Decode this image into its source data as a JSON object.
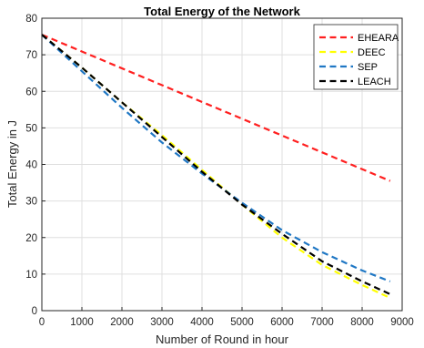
{
  "chart_data": {
    "type": "line",
    "title": "Total Energy of the Network",
    "xlabel": "Number of Round in hour",
    "ylabel": "Total Energy in J",
    "xlim": [
      0,
      9000
    ],
    "ylim": [
      0,
      80
    ],
    "xticks": [
      0,
      1000,
      2000,
      3000,
      4000,
      5000,
      6000,
      7000,
      8000,
      9000
    ],
    "yticks": [
      0,
      10,
      20,
      30,
      40,
      50,
      60,
      70,
      80
    ],
    "grid": true,
    "legend_position": "top-right",
    "series": [
      {
        "name": "EHEARA",
        "color": "#ff1f1f",
        "x": [
          0,
          8700
        ],
        "y": [
          75.5,
          35.5
        ]
      },
      {
        "name": "DEEC",
        "color": "#ffff00",
        "x": [
          0,
          1000,
          2000,
          3000,
          4000,
          5000,
          6000,
          7000,
          8000,
          8700
        ],
        "y": [
          75.5,
          66.5,
          57,
          48,
          38.5,
          29,
          20,
          12.5,
          7,
          3.5
        ]
      },
      {
        "name": "SEP",
        "color": "#1f77c4",
        "x": [
          0,
          1000,
          2000,
          3000,
          4000,
          5000,
          6000,
          7000,
          8000,
          8700
        ],
        "y": [
          75.5,
          65.5,
          55.5,
          46,
          37.5,
          29.5,
          22,
          16,
          11,
          8
        ]
      },
      {
        "name": "LEACH",
        "color": "#000000",
        "x": [
          0,
          1000,
          2000,
          3000,
          4000,
          5000,
          6000,
          7000,
          8000,
          8700
        ],
        "y": [
          75.5,
          66.5,
          57,
          47.5,
          38,
          29,
          21,
          13.5,
          8,
          4.5
        ]
      }
    ]
  }
}
